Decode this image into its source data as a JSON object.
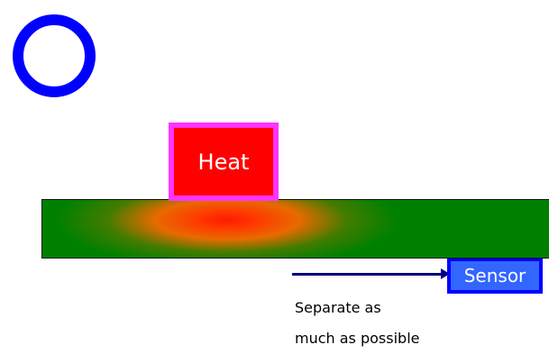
{
  "colors": {
    "ring": "#0000ff",
    "heat_fill": "#ff0000",
    "heat_border": "#ff33ff",
    "board": "#008000",
    "arrow": "#000080",
    "sensor_fill": "#3366ff",
    "sensor_border": "#0000ff"
  },
  "heat": {
    "label": "Heat"
  },
  "sensor": {
    "label": "Sensor"
  },
  "note": {
    "line1": "Separate as",
    "line2": "much as possible"
  }
}
